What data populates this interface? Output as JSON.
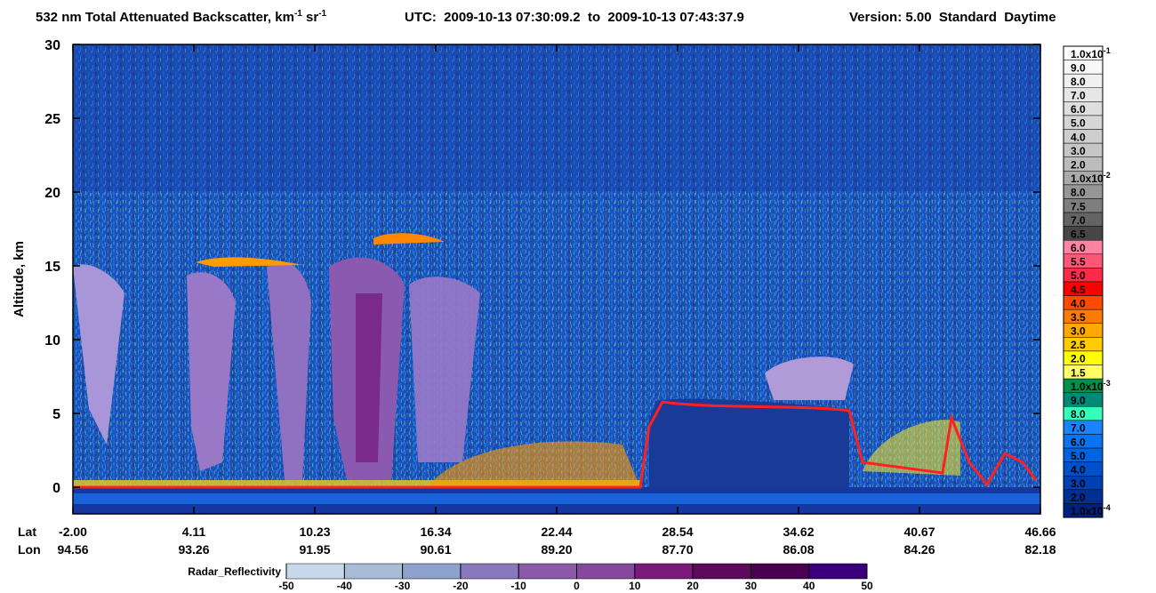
{
  "chart_data": {
    "type": "curtain",
    "title": {
      "main": "532 nm Total Attenuated Backscatter, km",
      "sup1": "-1",
      "mid": " sr",
      "sup2": "-1",
      "time": "UTC:  2009-10-13 07:30:09.2  to  2009-10-13 07:43:37.9",
      "version": "Version: 5.00  Standard  Daytime"
    },
    "ylabel": "Altitude, km",
    "ylim": [
      -1.8,
      30
    ],
    "yticks": [
      0,
      5,
      10,
      15,
      20,
      25,
      30
    ],
    "x_rows": [
      {
        "name": "Lat",
        "labels": [
          "-2.00",
          "4.11",
          "10.23",
          "16.34",
          "22.44",
          "28.54",
          "34.62",
          "40.67",
          "46.66"
        ]
      },
      {
        "name": "Lon",
        "labels": [
          "94.56",
          "93.26",
          "91.95",
          "90.61",
          "89.20",
          "87.70",
          "86.08",
          "84.26",
          "82.18"
        ]
      }
    ],
    "colorbar": {
      "labels": [
        {
          "text": "1.0x10",
          "sup": "-1"
        },
        {
          "text": "9.0"
        },
        {
          "text": "8.0"
        },
        {
          "text": "7.0"
        },
        {
          "text": "6.0"
        },
        {
          "text": "5.0"
        },
        {
          "text": "4.0"
        },
        {
          "text": "3.0"
        },
        {
          "text": "2.0"
        },
        {
          "text": "1.0x10",
          "sup": "-2"
        },
        {
          "text": "8.0"
        },
        {
          "text": "7.5"
        },
        {
          "text": "7.0"
        },
        {
          "text": "6.5"
        },
        {
          "text": "6.0"
        },
        {
          "text": "5.5"
        },
        {
          "text": "5.0"
        },
        {
          "text": "4.5"
        },
        {
          "text": "4.0"
        },
        {
          "text": "3.5"
        },
        {
          "text": "3.0"
        },
        {
          "text": "2.5"
        },
        {
          "text": "2.0"
        },
        {
          "text": "1.5"
        },
        {
          "text": "1.0x10",
          "sup": "-3"
        },
        {
          "text": "9.0"
        },
        {
          "text": "8.0"
        },
        {
          "text": "7.0"
        },
        {
          "text": "6.0"
        },
        {
          "text": "5.0"
        },
        {
          "text": "4.0"
        },
        {
          "text": "3.0"
        },
        {
          "text": "2.0"
        },
        {
          "text": "1.0x10",
          "sup": "-4"
        }
      ],
      "colors": [
        "#ffffff",
        "#f8f8f8",
        "#f0f0f0",
        "#e6e6e6",
        "#dedede",
        "#d6d6d6",
        "#cecece",
        "#c6c6c6",
        "#bcbcbc",
        "#aaaaaa",
        "#969696",
        "#7e7e7e",
        "#646464",
        "#464646",
        "#ff84a4",
        "#ff5876",
        "#ff2a48",
        "#ff0000",
        "#ff4a00",
        "#ff7a00",
        "#ffa800",
        "#ffcc00",
        "#ffff00",
        "#ffff66",
        "#009048",
        "#008878",
        "#33ffbb",
        "#1a84ff",
        "#0a74f0",
        "#0064e0",
        "#0050cc",
        "#0040b0",
        "#003094",
        "#00207e"
      ]
    },
    "radar": {
      "name": "Radar_Reflectivity",
      "ticks": [
        -50,
        -40,
        -30,
        -20,
        -10,
        0,
        10,
        20,
        30,
        40,
        50
      ],
      "colors": [
        "#c8d8ea",
        "#a8bcd8",
        "#8ea0cc",
        "#8878bc",
        "#8a5aa8",
        "#86489e",
        "#7a1a7a",
        "#5c0a5c",
        "#4a0050",
        "#3a007c"
      ]
    }
  }
}
